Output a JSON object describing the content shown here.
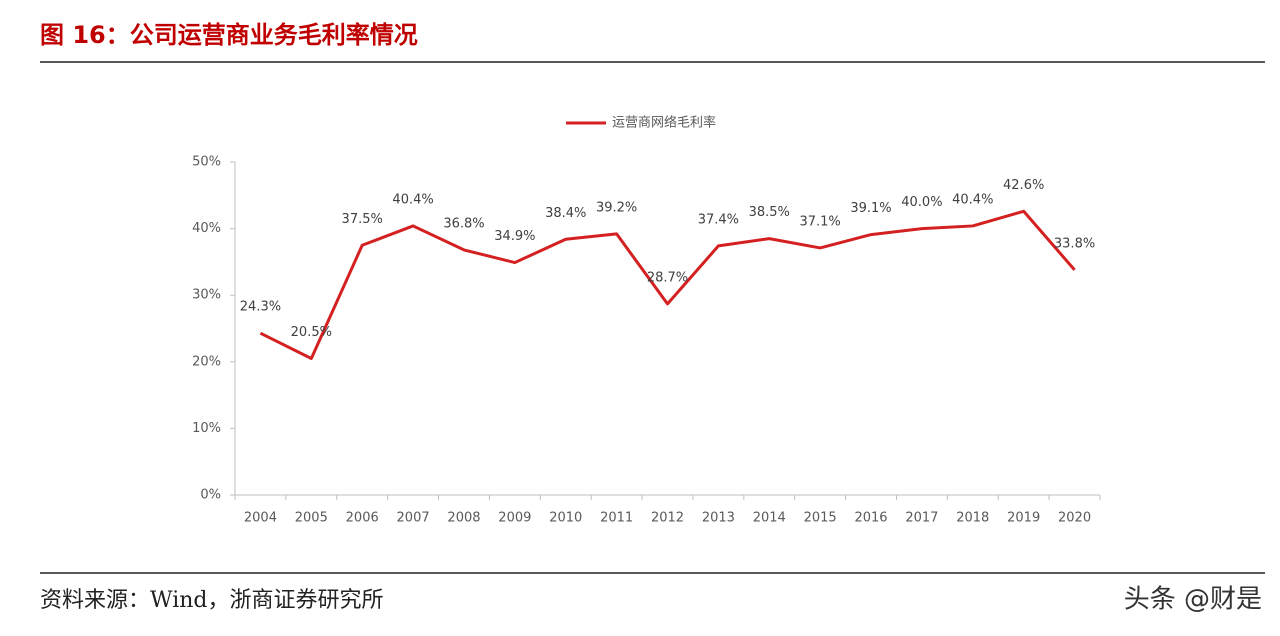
{
  "header": {
    "title": "图 16：公司运营商业务毛利率情况"
  },
  "chart_data": {
    "type": "line",
    "legend_position": "top",
    "categories": [
      "2004",
      "2005",
      "2006",
      "2007",
      "2008",
      "2009",
      "2010",
      "2011",
      "2012",
      "2013",
      "2014",
      "2015",
      "2016",
      "2017",
      "2018",
      "2019",
      "2020"
    ],
    "series": [
      {
        "name": "运营商网络毛利率",
        "color": "#d42020",
        "values": [
          24.3,
          20.5,
          37.5,
          40.4,
          36.8,
          34.9,
          38.4,
          39.2,
          28.7,
          37.4,
          38.5,
          37.1,
          39.1,
          40.0,
          40.4,
          42.6,
          33.8
        ],
        "value_labels": [
          "24.3%",
          "20.5%",
          "37.5%",
          "40.4%",
          "36.8%",
          "34.9%",
          "38.4%",
          "39.2%",
          "28.7%",
          "37.4%",
          "38.5%",
          "37.1%",
          "39.1%",
          "40.0%",
          "40.4%",
          "42.6%",
          "33.8%"
        ]
      }
    ],
    "ylim": [
      0,
      50
    ],
    "yticks": [
      {
        "value": 0,
        "label": "0%"
      },
      {
        "value": 10,
        "label": "10%"
      },
      {
        "value": 20,
        "label": "20%"
      },
      {
        "value": 30,
        "label": "30%"
      },
      {
        "value": 40,
        "label": "40%"
      },
      {
        "value": 50,
        "label": "50%"
      }
    ]
  },
  "footer": {
    "source": "资料来源：Wind，浙商证券研究所",
    "watermark": "头条 @财是"
  }
}
